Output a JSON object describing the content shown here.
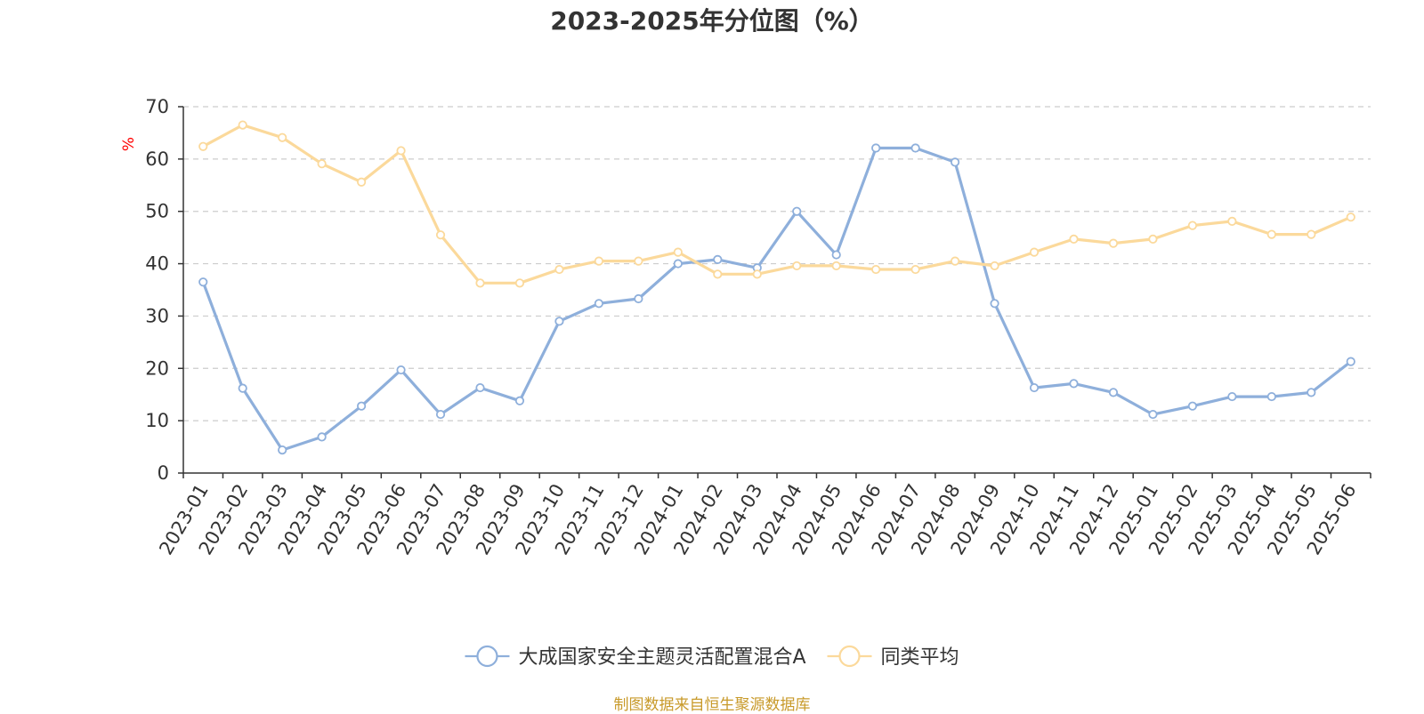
{
  "chart_data": {
    "type": "line",
    "title": "2023-2025年分位图（%）",
    "ylabel": "%",
    "xlabel": "",
    "ylim": [
      0,
      70
    ],
    "yticks": [
      0,
      10,
      20,
      30,
      40,
      50,
      60,
      70
    ],
    "grid": "horizontal dashed",
    "legend_position": "bottom-center",
    "categories": [
      "2023-01",
      "2023-02",
      "2023-03",
      "2023-04",
      "2023-05",
      "2023-06",
      "2023-07",
      "2023-08",
      "2023-09",
      "2023-10",
      "2023-11",
      "2023-12",
      "2024-01",
      "2024-02",
      "2024-03",
      "2024-04",
      "2024-05",
      "2024-06",
      "2024-07",
      "2024-08",
      "2024-09",
      "2024-10",
      "2024-11",
      "2024-12",
      "2025-01",
      "2025-02",
      "2025-03",
      "2025-04",
      "2025-05",
      "2025-06"
    ],
    "series": [
      {
        "name": "大成国家安全主题灵活配置混合A",
        "color": "#8eafdb",
        "values": [
          36.5,
          16.2,
          4.4,
          6.9,
          12.8,
          19.7,
          11.2,
          16.3,
          13.8,
          29.0,
          32.4,
          33.3,
          40.0,
          40.8,
          39.2,
          50.0,
          41.7,
          62.1,
          62.1,
          59.4,
          32.4,
          16.3,
          17.1,
          15.4,
          11.2,
          12.8,
          14.6,
          14.6,
          15.4,
          21.3
        ]
      },
      {
        "name": "同类平均",
        "color": "#fbd99b",
        "values": [
          62.4,
          66.5,
          64.1,
          59.1,
          55.6,
          61.6,
          45.5,
          36.3,
          36.3,
          38.9,
          40.5,
          40.5,
          42.2,
          38.0,
          38.0,
          39.6,
          39.6,
          38.9,
          38.9,
          40.5,
          39.6,
          42.2,
          44.7,
          43.9,
          44.7,
          47.3,
          48.1,
          45.6,
          45.6,
          48.9
        ]
      }
    ]
  },
  "source_note": "制图数据来自恒生聚源数据库"
}
